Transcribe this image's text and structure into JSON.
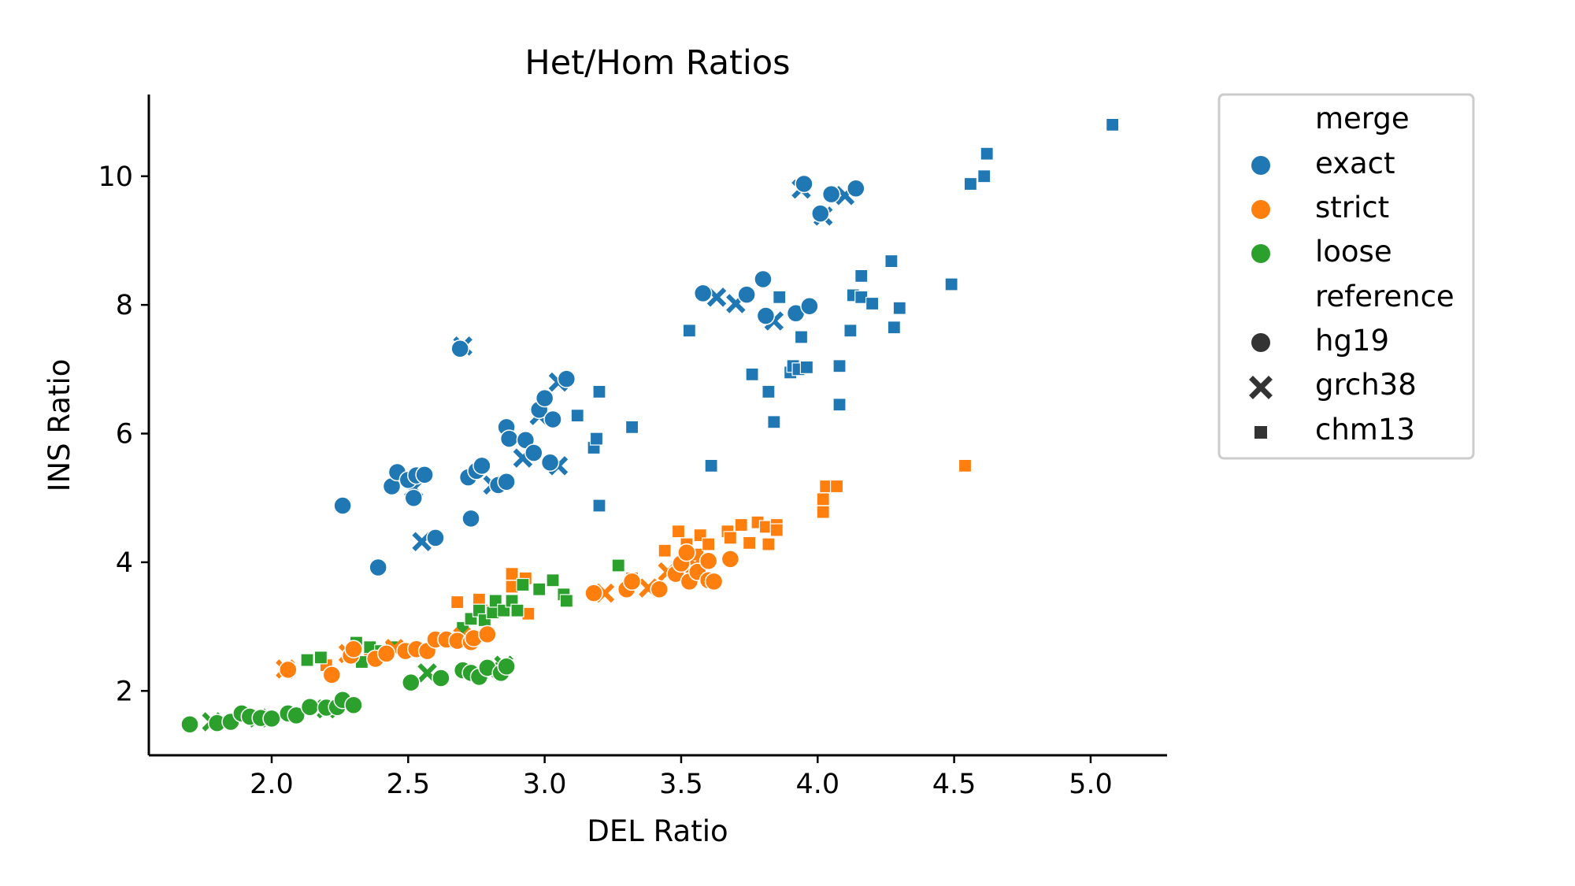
{
  "chart_data": {
    "type": "scatter",
    "title": "Het/Hom Ratios",
    "xlabel": "DEL Ratio",
    "ylabel": "INS Ratio",
    "xlim": [
      1.55,
      5.28
    ],
    "ylim": [
      1.0,
      11.27
    ],
    "xticks": [
      2.0,
      2.5,
      3.0,
      3.5,
      4.0,
      4.5,
      5.0
    ],
    "xtick_labels": [
      "2.0",
      "2.5",
      "3.0",
      "3.5",
      "4.0",
      "4.5",
      "5.0"
    ],
    "yticks": [
      2,
      4,
      6,
      8,
      10
    ],
    "ytick_labels": [
      "2",
      "4",
      "6",
      "8",
      "10"
    ],
    "grid": false,
    "legend_placement": "outside-right",
    "legend": {
      "hue_title": "merge",
      "hue_entries": [
        {
          "label": "exact",
          "color": "#1f77b4"
        },
        {
          "label": "strict",
          "color": "#ff7f0e"
        },
        {
          "label": "loose",
          "color": "#2ca02c"
        }
      ],
      "style_title": "reference",
      "style_entries": [
        {
          "label": "hg19",
          "marker": "circle"
        },
        {
          "label": "grch38",
          "marker": "x"
        },
        {
          "label": "chm13",
          "marker": "square"
        }
      ]
    },
    "series": [
      {
        "merge": "exact",
        "reference": "hg19",
        "points": [
          [
            2.26,
            4.88
          ],
          [
            2.39,
            3.92
          ],
          [
            2.44,
            5.18
          ],
          [
            2.46,
            5.4
          ],
          [
            2.5,
            5.28
          ],
          [
            2.53,
            5.35
          ],
          [
            2.52,
            5.0
          ],
          [
            2.56,
            5.36
          ],
          [
            2.6,
            4.38
          ],
          [
            2.69,
            7.32
          ],
          [
            2.72,
            5.32
          ],
          [
            2.75,
            5.42
          ],
          [
            2.77,
            5.5
          ],
          [
            2.73,
            4.68
          ],
          [
            2.83,
            5.2
          ],
          [
            2.86,
            5.25
          ],
          [
            2.86,
            6.1
          ],
          [
            2.87,
            5.92
          ],
          [
            2.93,
            5.9
          ],
          [
            2.96,
            5.7
          ],
          [
            2.98,
            6.37
          ],
          [
            3.0,
            6.55
          ],
          [
            3.02,
            5.55
          ],
          [
            3.03,
            6.22
          ],
          [
            3.08,
            6.85
          ],
          [
            3.58,
            8.18
          ],
          [
            3.74,
            8.16
          ],
          [
            3.8,
            8.4
          ],
          [
            3.81,
            7.83
          ],
          [
            3.92,
            7.87
          ],
          [
            3.97,
            7.98
          ],
          [
            3.95,
            9.88
          ],
          [
            4.01,
            9.42
          ],
          [
            4.05,
            9.72
          ],
          [
            4.14,
            9.81
          ]
        ]
      },
      {
        "merge": "exact",
        "reference": "grch38",
        "points": [
          [
            2.55,
            4.32
          ],
          [
            2.52,
            5.15
          ],
          [
            2.81,
            5.2
          ],
          [
            3.05,
            5.5
          ],
          [
            2.92,
            5.62
          ],
          [
            2.98,
            6.28
          ],
          [
            3.05,
            6.8
          ],
          [
            2.7,
            7.36
          ],
          [
            3.63,
            8.12
          ],
          [
            3.7,
            8.02
          ],
          [
            3.84,
            7.75
          ],
          [
            3.94,
            9.8
          ],
          [
            4.1,
            9.7
          ],
          [
            4.02,
            9.38
          ]
        ]
      },
      {
        "merge": "exact",
        "reference": "chm13",
        "points": [
          [
            3.18,
            5.78
          ],
          [
            3.19,
            5.92
          ],
          [
            3.2,
            4.88
          ],
          [
            3.2,
            6.65
          ],
          [
            3.12,
            6.28
          ],
          [
            3.32,
            6.1
          ],
          [
            3.53,
            7.6
          ],
          [
            3.61,
            5.5
          ],
          [
            3.76,
            6.92
          ],
          [
            3.82,
            6.65
          ],
          [
            3.84,
            6.18
          ],
          [
            3.86,
            8.12
          ],
          [
            3.9,
            6.95
          ],
          [
            3.91,
            7.05
          ],
          [
            3.93,
            7.0
          ],
          [
            3.94,
            7.5
          ],
          [
            3.96,
            7.03
          ],
          [
            4.08,
            7.05
          ],
          [
            4.08,
            6.45
          ],
          [
            4.12,
            7.6
          ],
          [
            4.13,
            8.15
          ],
          [
            4.16,
            8.12
          ],
          [
            4.16,
            8.45
          ],
          [
            4.2,
            8.02
          ],
          [
            4.27,
            8.68
          ],
          [
            4.28,
            7.65
          ],
          [
            4.3,
            7.95
          ],
          [
            4.49,
            8.32
          ],
          [
            4.56,
            9.88
          ],
          [
            4.61,
            10.0
          ],
          [
            4.62,
            10.35
          ],
          [
            5.08,
            10.8
          ]
        ]
      },
      {
        "merge": "strict",
        "reference": "hg19",
        "points": [
          [
            2.06,
            2.33
          ],
          [
            2.22,
            2.25
          ],
          [
            2.29,
            2.55
          ],
          [
            2.3,
            2.65
          ],
          [
            2.38,
            2.5
          ],
          [
            2.42,
            2.58
          ],
          [
            2.49,
            2.62
          ],
          [
            2.53,
            2.65
          ],
          [
            2.57,
            2.62
          ],
          [
            2.6,
            2.8
          ],
          [
            2.64,
            2.8
          ],
          [
            2.68,
            2.78
          ],
          [
            2.73,
            2.76
          ],
          [
            2.74,
            2.82
          ],
          [
            2.79,
            2.88
          ],
          [
            3.18,
            3.52
          ],
          [
            3.3,
            3.58
          ],
          [
            3.32,
            3.7
          ],
          [
            3.42,
            3.58
          ],
          [
            3.48,
            3.82
          ],
          [
            3.5,
            3.98
          ],
          [
            3.53,
            3.7
          ],
          [
            3.56,
            3.85
          ],
          [
            3.6,
            3.72
          ],
          [
            3.52,
            4.15
          ],
          [
            3.6,
            4.02
          ],
          [
            3.62,
            3.7
          ],
          [
            3.68,
            4.05
          ]
        ]
      },
      {
        "merge": "strict",
        "reference": "grch38",
        "points": [
          [
            2.05,
            2.34
          ],
          [
            2.28,
            2.58
          ],
          [
            2.45,
            2.66
          ],
          [
            2.7,
            2.84
          ],
          [
            3.22,
            3.52
          ],
          [
            3.38,
            3.6
          ],
          [
            3.45,
            3.85
          ],
          [
            3.55,
            3.95
          ]
        ]
      },
      {
        "merge": "strict",
        "reference": "chm13",
        "points": [
          [
            2.2,
            2.4
          ],
          [
            2.36,
            2.6
          ],
          [
            2.68,
            3.38
          ],
          [
            2.76,
            3.42
          ],
          [
            2.77,
            3.25
          ],
          [
            2.88,
            3.82
          ],
          [
            2.88,
            3.62
          ],
          [
            2.93,
            3.75
          ],
          [
            2.94,
            3.2
          ],
          [
            3.32,
            3.75
          ],
          [
            3.44,
            4.18
          ],
          [
            3.49,
            4.48
          ],
          [
            3.52,
            4.28
          ],
          [
            3.56,
            4.12
          ],
          [
            3.57,
            4.42
          ],
          [
            3.6,
            4.28
          ],
          [
            3.67,
            4.48
          ],
          [
            3.68,
            4.38
          ],
          [
            3.72,
            4.58
          ],
          [
            3.75,
            4.3
          ],
          [
            3.78,
            4.62
          ],
          [
            3.81,
            4.55
          ],
          [
            3.82,
            4.28
          ],
          [
            3.85,
            4.58
          ],
          [
            3.85,
            4.5
          ],
          [
            4.02,
            4.78
          ],
          [
            4.02,
            4.98
          ],
          [
            4.03,
            5.18
          ],
          [
            4.07,
            5.18
          ],
          [
            4.54,
            5.5
          ]
        ]
      },
      {
        "merge": "loose",
        "reference": "hg19",
        "points": [
          [
            1.7,
            1.48
          ],
          [
            1.8,
            1.5
          ],
          [
            1.85,
            1.52
          ],
          [
            1.89,
            1.65
          ],
          [
            1.92,
            1.6
          ],
          [
            1.96,
            1.58
          ],
          [
            2.0,
            1.57
          ],
          [
            2.06,
            1.65
          ],
          [
            2.09,
            1.62
          ],
          [
            2.14,
            1.75
          ],
          [
            2.2,
            1.74
          ],
          [
            2.24,
            1.75
          ],
          [
            2.26,
            1.86
          ],
          [
            2.3,
            1.78
          ],
          [
            2.51,
            2.13
          ],
          [
            2.62,
            2.2
          ],
          [
            2.7,
            2.32
          ],
          [
            2.73,
            2.28
          ],
          [
            2.76,
            2.22
          ],
          [
            2.79,
            2.36
          ],
          [
            2.84,
            2.28
          ],
          [
            2.86,
            2.38
          ]
        ]
      },
      {
        "merge": "loose",
        "reference": "grch38",
        "points": [
          [
            1.78,
            1.52
          ],
          [
            1.95,
            1.58
          ],
          [
            2.2,
            1.72
          ],
          [
            2.57,
            2.28
          ],
          [
            2.8,
            2.3
          ],
          [
            2.85,
            2.4
          ]
        ]
      },
      {
        "merge": "loose",
        "reference": "chm13",
        "points": [
          [
            2.13,
            2.48
          ],
          [
            2.18,
            2.52
          ],
          [
            2.31,
            2.75
          ],
          [
            2.33,
            2.45
          ],
          [
            2.36,
            2.68
          ],
          [
            2.4,
            2.62
          ],
          [
            2.44,
            2.68
          ],
          [
            2.7,
            2.98
          ],
          [
            2.73,
            3.12
          ],
          [
            2.76,
            3.25
          ],
          [
            2.78,
            3.1
          ],
          [
            2.81,
            3.22
          ],
          [
            2.82,
            3.4
          ],
          [
            2.85,
            3.25
          ],
          [
            2.88,
            3.4
          ],
          [
            2.9,
            3.25
          ],
          [
            2.92,
            3.65
          ],
          [
            2.98,
            3.58
          ],
          [
            3.03,
            3.72
          ],
          [
            3.07,
            3.5
          ],
          [
            3.08,
            3.4
          ],
          [
            3.27,
            3.95
          ]
        ]
      }
    ]
  }
}
